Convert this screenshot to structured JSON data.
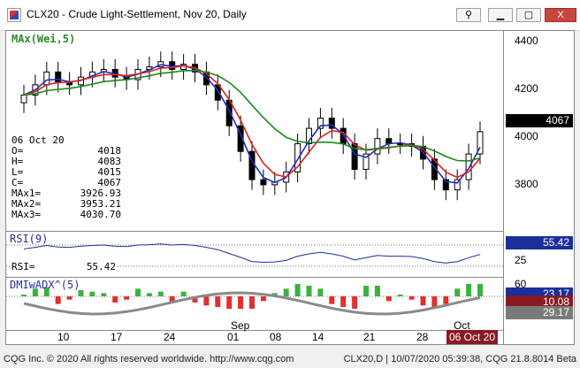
{
  "window": {
    "title": "CLX20 - Crude Light-Settlement, Nov 20, Daily",
    "close_label": "X"
  },
  "study_label": "MAx(Wei,5)",
  "price_axis": {
    "labels": [
      "4400",
      "4200",
      "4000",
      "3800"
    ],
    "current_price": "4067"
  },
  "infobox": {
    "date": "06 Oct 20",
    "rows": [
      {
        "k": "O=",
        "v": "4018"
      },
      {
        "k": "H=",
        "v": "4083"
      },
      {
        "k": "L=",
        "v": "4015"
      },
      {
        "k": "C=",
        "v": "4067"
      },
      {
        "k": "MAx1=",
        "v": "3926.93"
      },
      {
        "k": "MAx2=",
        "v": "3953.21"
      },
      {
        "k": "MAx3=",
        "v": "4030.70"
      }
    ]
  },
  "rsi": {
    "label": "RSI(9)",
    "value_label": "RSI=",
    "value": "55.42",
    "axis": [
      "55.42",
      "25"
    ]
  },
  "dmi": {
    "label": "DMIwADX^(5)",
    "axis": [
      "60",
      "23.17",
      "10.08",
      "29.17"
    ]
  },
  "x_axis": {
    "ticks": [
      "10",
      "17",
      "24",
      "01",
      "08",
      "14",
      "21",
      "28"
    ],
    "months": [
      "Sep",
      "Oct"
    ],
    "current_date": "06 Oct 20"
  },
  "colors": {
    "up": "#ffffff",
    "down": "#000000",
    "ma1": "#1f2fc0",
    "ma2": "#e02020",
    "ma3": "#1a8a1a",
    "price_box": "#000000",
    "rsi_box": "#1a2f9a",
    "date_box": "#8a1a22"
  },
  "status": {
    "left": "CQG Inc. © 2020 All rights reserved worldwide. http://www.cqg.com",
    "right": "CLX20,D | 10/07/2020 05:39:38, CQG 21.8.8014 Beta"
  },
  "chart_data": {
    "type": "candlestick",
    "x": [
      "Aug 10",
      "Aug 11",
      "Aug 12",
      "Aug 13",
      "Aug 14",
      "Aug 17",
      "Aug 18",
      "Aug 19",
      "Aug 20",
      "Aug 21",
      "Aug 24",
      "Aug 25",
      "Aug 26",
      "Aug 27",
      "Aug 28",
      "Aug 31",
      "Sep 01",
      "Sep 02",
      "Sep 03",
      "Sep 04",
      "Sep 08",
      "Sep 09",
      "Sep 10",
      "Sep 11",
      "Sep 14",
      "Sep 15",
      "Sep 16",
      "Sep 17",
      "Sep 18",
      "Sep 21",
      "Sep 22",
      "Sep 23",
      "Sep 24",
      "Sep 25",
      "Sep 28",
      "Sep 29",
      "Sep 30",
      "Oct 01",
      "Oct 02",
      "Oct 05",
      "Oct 06"
    ],
    "close": [
      4210,
      4250,
      4300,
      4260,
      4250,
      4280,
      4300,
      4310,
      4280,
      4270,
      4310,
      4320,
      4340,
      4310,
      4330,
      4300,
      4250,
      4190,
      4090,
      3990,
      3880,
      3860,
      3870,
      3910,
      4020,
      4080,
      4120,
      4080,
      4020,
      3920,
      3980,
      4040,
      4020,
      4020,
      4010,
      3960,
      3880,
      3840,
      3880,
      3980,
      4067
    ],
    "ylim": [
      3680,
      4460
    ]
  }
}
